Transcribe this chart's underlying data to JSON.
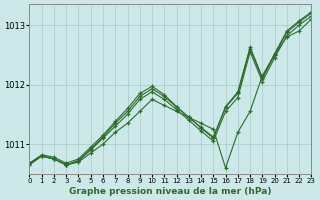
{
  "xlabel": "Graphe pression niveau de la mer (hPa)",
  "background_color": "#cde8e8",
  "grid_color": "#a8c8c8",
  "line_color": "#2d6b2d",
  "xlim": [
    0,
    23
  ],
  "ylim": [
    1010.5,
    1013.35
  ],
  "yticks": [
    1011,
    1012,
    1013
  ],
  "xticks": [
    0,
    1,
    2,
    3,
    4,
    5,
    6,
    7,
    8,
    9,
    10,
    11,
    12,
    13,
    14,
    15,
    16,
    17,
    18,
    19,
    20,
    21,
    22,
    23
  ],
  "series": [
    {
      "x": [
        0,
        1,
        2,
        3,
        4,
        5,
        6,
        7,
        8,
        9,
        10,
        11,
        12,
        13,
        14,
        15,
        16,
        17,
        18,
        19,
        20,
        21,
        22,
        23
      ],
      "y": [
        1010.65,
        1010.8,
        1010.75,
        1010.65,
        1010.7,
        1010.85,
        1011.0,
        1011.2,
        1011.35,
        1011.55,
        1011.75,
        1011.65,
        1011.55,
        1011.45,
        1011.35,
        1011.25,
        1010.6,
        1011.2,
        1011.55,
        1012.15,
        1012.5,
        1012.8,
        1012.9,
        1013.1
      ]
    },
    {
      "x": [
        0,
        1,
        2,
        3,
        4,
        5,
        6,
        7,
        8,
        9,
        10,
        11,
        12,
        13,
        14,
        15,
        16,
        17,
        18,
        19,
        20,
        21,
        22,
        23
      ],
      "y": [
        1010.67,
        1010.8,
        1010.75,
        1010.65,
        1010.72,
        1010.9,
        1011.1,
        1011.3,
        1011.5,
        1011.75,
        1011.88,
        1011.75,
        1011.58,
        1011.4,
        1011.22,
        1011.05,
        1011.55,
        1011.78,
        1012.55,
        1012.05,
        1012.45,
        1012.82,
        1013.0,
        1013.15
      ]
    },
    {
      "x": [
        0,
        1,
        2,
        3,
        4,
        5,
        6,
        7,
        8,
        9,
        10,
        11,
        12,
        13,
        14,
        15,
        16,
        17,
        18,
        19,
        20,
        21,
        22,
        23
      ],
      "y": [
        1010.68,
        1010.8,
        1010.75,
        1010.65,
        1010.72,
        1010.92,
        1011.12,
        1011.35,
        1011.55,
        1011.8,
        1011.93,
        1011.8,
        1011.62,
        1011.45,
        1011.28,
        1011.12,
        1011.62,
        1011.85,
        1012.6,
        1012.1,
        1012.5,
        1012.88,
        1013.05,
        1013.2
      ]
    },
    {
      "x": [
        0,
        1,
        2,
        3,
        4,
        5,
        6,
        7,
        8,
        9,
        10,
        11,
        12,
        13,
        14,
        15,
        16,
        17,
        18,
        19,
        20,
        21,
        22,
        23
      ],
      "y": [
        1010.68,
        1010.82,
        1010.78,
        1010.68,
        1010.75,
        1010.95,
        1011.15,
        1011.38,
        1011.6,
        1011.85,
        1011.97,
        1011.83,
        1011.63,
        1011.45,
        1011.27,
        1011.1,
        1011.63,
        1011.88,
        1012.63,
        1012.12,
        1012.52,
        1012.9,
        1013.07,
        1013.22
      ]
    }
  ]
}
